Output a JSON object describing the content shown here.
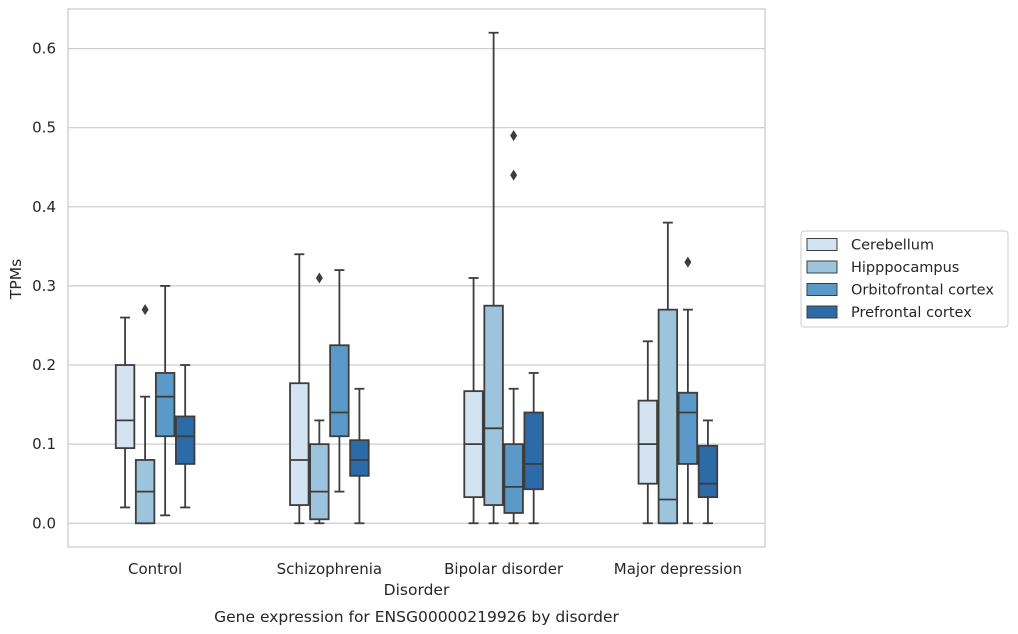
{
  "chart_data": {
    "type": "boxplot",
    "title": "",
    "caption": "Gene expression for ENSG00000219926 by disorder",
    "xlabel": "Disorder",
    "ylabel": "TPMs",
    "ylim": [
      -0.03,
      0.65
    ],
    "yticks": [
      "0.0",
      "0.1",
      "0.2",
      "0.3",
      "0.4",
      "0.5",
      "0.6"
    ],
    "grid": "horizontal",
    "legend_position": "right",
    "categories": [
      "Control",
      "Schizophrenia",
      "Bipolar disorder",
      "Major depression"
    ],
    "series": [
      {
        "name": "Cerebellum",
        "color": "#d4e3f2",
        "boxes": [
          {
            "whislo": 0.02,
            "q1": 0.095,
            "med": 0.13,
            "q3": 0.2,
            "whishi": 0.26,
            "fliers": []
          },
          {
            "whislo": 0.0,
            "q1": 0.023,
            "med": 0.08,
            "q3": 0.177,
            "whishi": 0.34,
            "fliers": []
          },
          {
            "whislo": 0.0,
            "q1": 0.033,
            "med": 0.1,
            "q3": 0.167,
            "whishi": 0.31,
            "fliers": []
          },
          {
            "whislo": 0.0,
            "q1": 0.05,
            "med": 0.1,
            "q3": 0.155,
            "whishi": 0.23,
            "fliers": []
          }
        ]
      },
      {
        "name": "Hipppocampus",
        "color": "#9cc4dd",
        "boxes": [
          {
            "whislo": 0.0,
            "q1": 0.0,
            "med": 0.04,
            "q3": 0.08,
            "whishi": 0.16,
            "fliers": [
              0.27
            ]
          },
          {
            "whislo": 0.0,
            "q1": 0.005,
            "med": 0.04,
            "q3": 0.1,
            "whishi": 0.13,
            "fliers": [
              0.31
            ]
          },
          {
            "whislo": 0.0,
            "q1": 0.023,
            "med": 0.12,
            "q3": 0.275,
            "whishi": 0.62,
            "fliers": []
          },
          {
            "whislo": 0.0,
            "q1": 0.0,
            "med": 0.03,
            "q3": 0.27,
            "whishi": 0.38,
            "fliers": []
          }
        ]
      },
      {
        "name": "Orbitofrontal cortex",
        "color": "#5b9ac8",
        "boxes": [
          {
            "whislo": 0.01,
            "q1": 0.11,
            "med": 0.16,
            "q3": 0.19,
            "whishi": 0.3,
            "fliers": []
          },
          {
            "whislo": 0.04,
            "q1": 0.11,
            "med": 0.14,
            "q3": 0.225,
            "whishi": 0.32,
            "fliers": []
          },
          {
            "whislo": 0.0,
            "q1": 0.013,
            "med": 0.046,
            "q3": 0.1,
            "whishi": 0.17,
            "fliers": [
              0.44,
              0.49
            ]
          },
          {
            "whislo": 0.0,
            "q1": 0.075,
            "med": 0.14,
            "q3": 0.165,
            "whishi": 0.27,
            "fliers": [
              0.33
            ]
          }
        ]
      },
      {
        "name": "Prefrontal cortex",
        "color": "#2c6aa8",
        "boxes": [
          {
            "whislo": 0.02,
            "q1": 0.075,
            "med": 0.11,
            "q3": 0.135,
            "whishi": 0.2,
            "fliers": []
          },
          {
            "whislo": 0.0,
            "q1": 0.06,
            "med": 0.08,
            "q3": 0.105,
            "whishi": 0.17,
            "fliers": []
          },
          {
            "whislo": 0.0,
            "q1": 0.043,
            "med": 0.075,
            "q3": 0.14,
            "whishi": 0.19,
            "fliers": []
          },
          {
            "whislo": 0.0,
            "q1": 0.033,
            "med": 0.05,
            "q3": 0.098,
            "whishi": 0.13,
            "fliers": []
          }
        ]
      }
    ]
  }
}
